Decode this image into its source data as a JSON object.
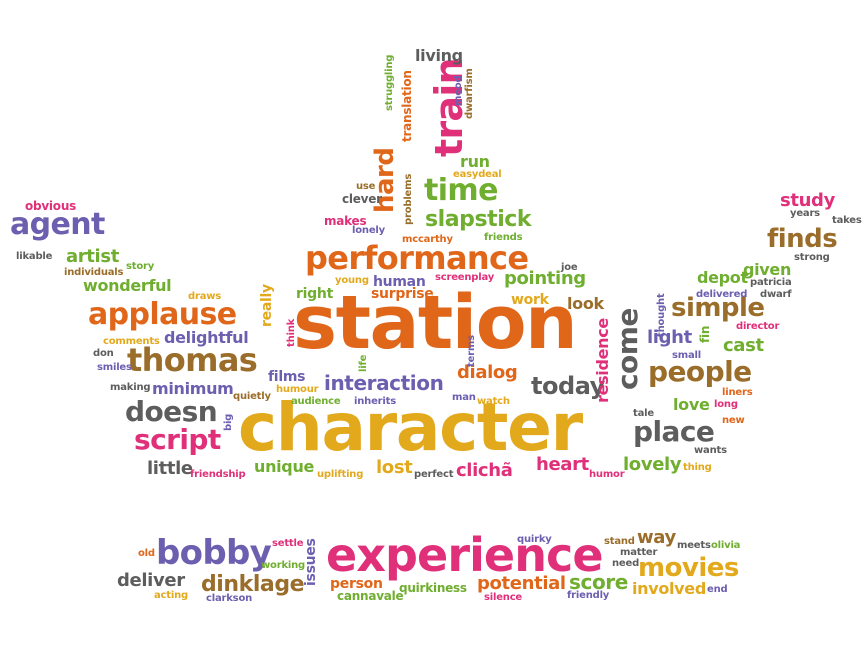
{
  "palette": {
    "orange": "#e0661a",
    "gold": "#e3a91d",
    "purple": "#6c5fb0",
    "pink": "#e0307a",
    "green": "#6fae2f",
    "gray": "#5d5d5d",
    "brown": "#9a6d2a"
  },
  "words": [
    {
      "text": "station",
      "color": "orange"
    },
    {
      "text": "character",
      "color": "gold"
    },
    {
      "text": "experience",
      "color": "pink"
    },
    {
      "text": "performance",
      "color": "orange"
    },
    {
      "text": "thomas",
      "color": "brown"
    },
    {
      "text": "applause",
      "color": "orange"
    },
    {
      "text": "bobby",
      "color": "purple"
    },
    {
      "text": "movies",
      "color": "gold"
    },
    {
      "text": "finds",
      "color": "brown"
    },
    {
      "text": "agent",
      "color": "purple"
    },
    {
      "text": "people",
      "color": "brown"
    },
    {
      "text": "place",
      "color": "gray"
    },
    {
      "text": "script",
      "color": "pink"
    },
    {
      "text": "doesn",
      "color": "gray"
    },
    {
      "text": "simple",
      "color": "brown"
    },
    {
      "text": "time",
      "color": "green"
    },
    {
      "text": "slapstick",
      "color": "green"
    },
    {
      "text": "train",
      "color": "pink"
    },
    {
      "text": "hard",
      "color": "orange"
    },
    {
      "text": "come",
      "color": "gray"
    },
    {
      "text": "today",
      "color": "gray"
    },
    {
      "text": "interaction",
      "color": "purple"
    },
    {
      "text": "dinklage",
      "color": "brown"
    },
    {
      "text": "wonderful",
      "color": "green"
    },
    {
      "text": "delightful",
      "color": "purple"
    },
    {
      "text": "minimum",
      "color": "purple"
    },
    {
      "text": "deliver",
      "color": "gray"
    },
    {
      "text": "potential",
      "color": "orange"
    },
    {
      "text": "score",
      "color": "green"
    },
    {
      "text": "involved",
      "color": "gold"
    },
    {
      "text": "way",
      "color": "brown"
    },
    {
      "text": "dialog",
      "color": "orange"
    },
    {
      "text": "pointing",
      "color": "green"
    },
    {
      "text": "artist",
      "color": "green"
    },
    {
      "text": "heart",
      "color": "pink"
    },
    {
      "text": "lovely",
      "color": "green"
    },
    {
      "text": "little",
      "color": "gray"
    },
    {
      "text": "unique",
      "color": "green"
    },
    {
      "text": "lost",
      "color": "gold"
    },
    {
      "text": "clichã",
      "color": "pink"
    },
    {
      "text": "residence",
      "color": "pink"
    },
    {
      "text": "light",
      "color": "purple"
    },
    {
      "text": "cast",
      "color": "green"
    },
    {
      "text": "study",
      "color": "pink"
    },
    {
      "text": "given",
      "color": "green"
    },
    {
      "text": "depot",
      "color": "green"
    },
    {
      "text": "really",
      "color": "gold"
    },
    {
      "text": "love",
      "color": "green"
    },
    {
      "text": "look",
      "color": "brown"
    },
    {
      "text": "work",
      "color": "gold"
    },
    {
      "text": "surprise",
      "color": "orange"
    },
    {
      "text": "human",
      "color": "purple"
    },
    {
      "text": "right",
      "color": "green"
    },
    {
      "text": "films",
      "color": "purple"
    },
    {
      "text": "issues",
      "color": "purple"
    },
    {
      "text": "living",
      "color": "gray"
    },
    {
      "text": "run",
      "color": "green"
    },
    {
      "text": "obvious",
      "color": "pink"
    },
    {
      "text": "person",
      "color": "orange"
    },
    {
      "text": "quirkiness",
      "color": "green"
    },
    {
      "text": "cannavale",
      "color": "green"
    },
    {
      "text": "translation",
      "color": "orange"
    },
    {
      "text": "screenplay",
      "color": "pink"
    },
    {
      "text": "makes",
      "color": "pink"
    },
    {
      "text": "lonely",
      "color": "purple"
    },
    {
      "text": "clever",
      "color": "gray"
    },
    {
      "text": "use",
      "color": "brown"
    },
    {
      "text": "mccarthy",
      "color": "orange"
    },
    {
      "text": "friends",
      "color": "green"
    },
    {
      "text": "easydeal",
      "color": "gold"
    },
    {
      "text": "problems",
      "color": "brown"
    },
    {
      "text": "struggling",
      "color": "green"
    },
    {
      "text": "mood",
      "color": "purple"
    },
    {
      "text": "dwarfism",
      "color": "brown"
    },
    {
      "text": "young",
      "color": "gold"
    },
    {
      "text": "joe",
      "color": "gray"
    },
    {
      "text": "likable",
      "color": "gray"
    },
    {
      "text": "individuals",
      "color": "brown"
    },
    {
      "text": "story",
      "color": "green"
    },
    {
      "text": "draws",
      "color": "gold"
    },
    {
      "text": "comments",
      "color": "gold"
    },
    {
      "text": "don",
      "color": "gray"
    },
    {
      "text": "smiles",
      "color": "purple"
    },
    {
      "text": "making",
      "color": "gray"
    },
    {
      "text": "quietly",
      "color": "brown"
    },
    {
      "text": "humour",
      "color": "gold"
    },
    {
      "text": "audience",
      "color": "green"
    },
    {
      "text": "inherits",
      "color": "purple"
    },
    {
      "text": "man",
      "color": "purple"
    },
    {
      "text": "watch",
      "color": "gold"
    },
    {
      "text": "life",
      "color": "green"
    },
    {
      "text": "terms",
      "color": "purple"
    },
    {
      "text": "think",
      "color": "pink"
    },
    {
      "text": "big",
      "color": "purple"
    },
    {
      "text": "friendship",
      "color": "pink"
    },
    {
      "text": "uplifting",
      "color": "gold"
    },
    {
      "text": "perfect",
      "color": "gray"
    },
    {
      "text": "humor",
      "color": "pink"
    },
    {
      "text": "thing",
      "color": "gold"
    },
    {
      "text": "wants",
      "color": "gray"
    },
    {
      "text": "new",
      "color": "orange"
    },
    {
      "text": "tale",
      "color": "gray"
    },
    {
      "text": "long",
      "color": "pink"
    },
    {
      "text": "liners",
      "color": "orange"
    },
    {
      "text": "small",
      "color": "purple"
    },
    {
      "text": "fin",
      "color": "green"
    },
    {
      "text": "thought",
      "color": "purple"
    },
    {
      "text": "director",
      "color": "pink"
    },
    {
      "text": "dwarf",
      "color": "gray"
    },
    {
      "text": "patricia",
      "color": "gray"
    },
    {
      "text": "delivered",
      "color": "purple"
    },
    {
      "text": "strong",
      "color": "gray"
    },
    {
      "text": "years",
      "color": "gray"
    },
    {
      "text": "takes",
      "color": "gray"
    },
    {
      "text": "old",
      "color": "orange"
    },
    {
      "text": "settle",
      "color": "pink"
    },
    {
      "text": "working",
      "color": "green"
    },
    {
      "text": "acting",
      "color": "gold"
    },
    {
      "text": "clarkson",
      "color": "purple"
    },
    {
      "text": "quirky",
      "color": "purple"
    },
    {
      "text": "silence",
      "color": "pink"
    },
    {
      "text": "friendly",
      "color": "purple"
    },
    {
      "text": "stand",
      "color": "brown"
    },
    {
      "text": "matter",
      "color": "gray"
    },
    {
      "text": "need",
      "color": "gray"
    },
    {
      "text": "meets",
      "color": "gray"
    },
    {
      "text": "olivia",
      "color": "green"
    },
    {
      "text": "end",
      "color": "purple"
    }
  ]
}
